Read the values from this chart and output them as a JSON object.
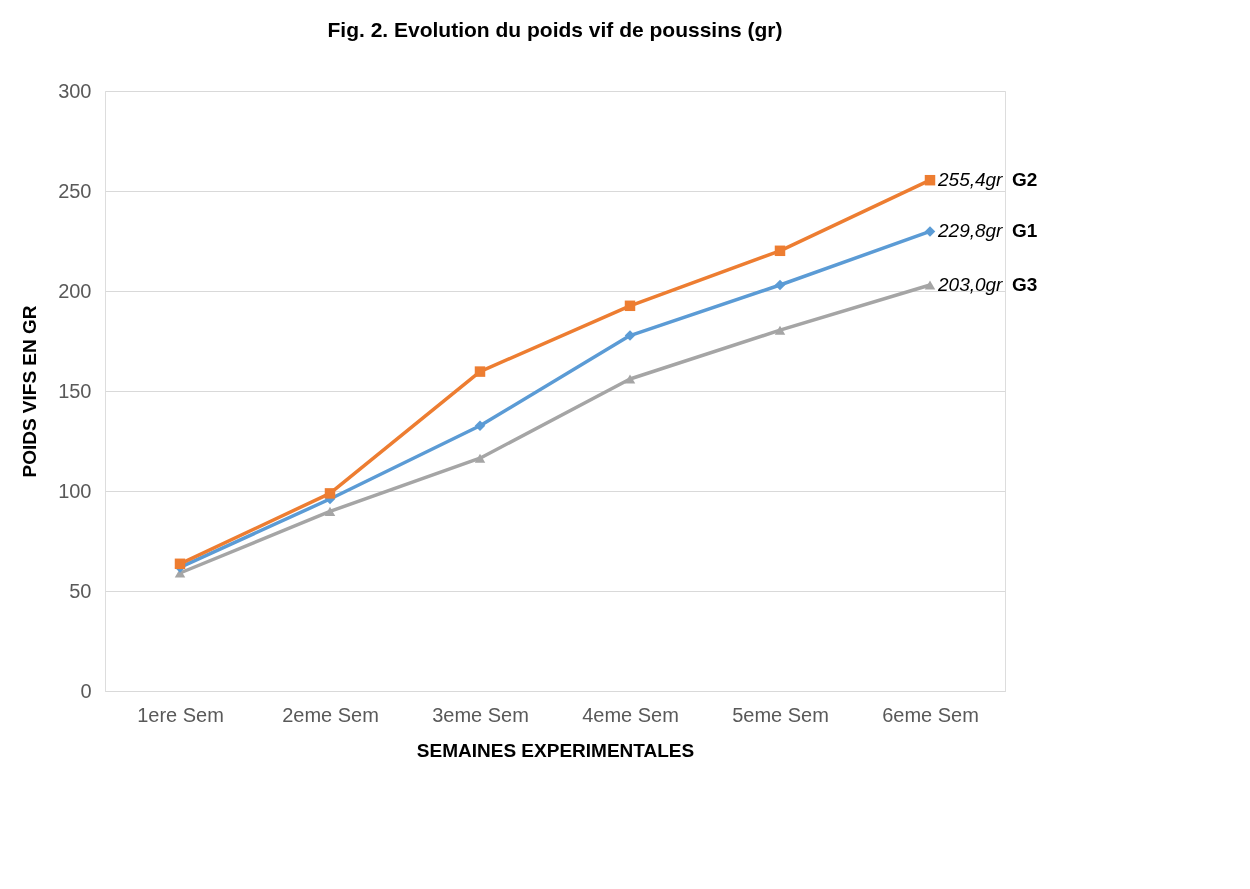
{
  "chart_data": {
    "type": "line",
    "title": "Fig. 2. Evolution du poids vif de poussins (gr)",
    "xlabel": "SEMAINES EXPERIMENTALES",
    "ylabel": "POIDS VIFS EN GR",
    "categories": [
      "1ere Sem",
      "2eme Sem",
      "3eme Sem",
      "4eme Sem",
      "5eme Sem",
      "6eme Sem"
    ],
    "series": [
      {
        "name": "G2",
        "color": "#ed7d31",
        "marker": "square",
        "values": [
          63.6,
          98.8,
          159.7,
          192.6,
          220.1,
          255.4
        ],
        "value_labels": [
          null,
          null,
          null,
          null,
          null,
          "255,4gr"
        ]
      },
      {
        "name": "G1",
        "color": "#5b9bd5",
        "marker": "diamond",
        "values": [
          61.8,
          96,
          132.6,
          177.7,
          203,
          229.8
        ],
        "value_labels": [
          null,
          null,
          null,
          null,
          null,
          "229,8gr"
        ]
      },
      {
        "name": "G3",
        "color": "#a5a5a5",
        "marker": "triangle",
        "values": [
          59,
          89.8,
          116.4,
          156,
          180.4,
          203.0
        ],
        "value_labels": [
          null,
          null,
          null,
          null,
          null,
          "203,0gr"
        ]
      }
    ],
    "ylim": [
      0,
      300
    ],
    "yticks": [
      0,
      50,
      100,
      150,
      200,
      250,
      300
    ],
    "grid": "y"
  }
}
